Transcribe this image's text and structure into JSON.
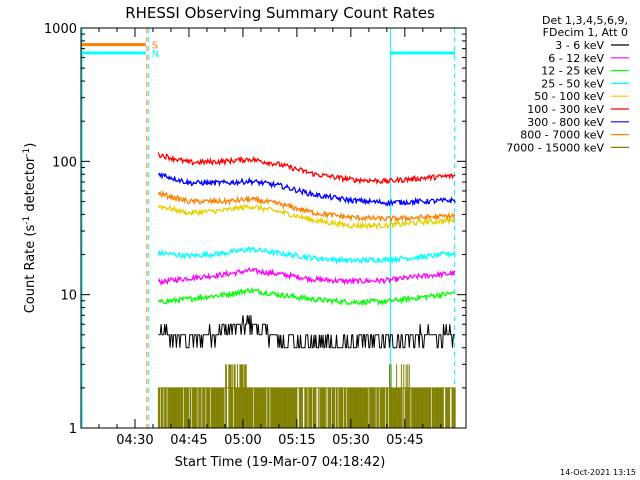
{
  "chart_data": {
    "type": "line",
    "title": "RHESSI Observing Summary Count Rates",
    "xlabel": "Start Time (19-Mar-07 04:18:42)",
    "ylabel": "Count Rate (s⁻¹ detector⁻¹)",
    "footer": "14-Oct-2021 13:15",
    "y_scale": "log",
    "ylim": [
      1,
      1000
    ],
    "xlim_minutes_after_0420": [
      0,
      107
    ],
    "y_ticks": [
      {
        "value": 1,
        "label": "1"
      },
      {
        "value": 10,
        "label": "10"
      },
      {
        "value": 100,
        "label": "100"
      },
      {
        "value": 1000,
        "label": "1000"
      }
    ],
    "x_ticks": [
      {
        "value": 15,
        "label": "04:30"
      },
      {
        "value": 30,
        "label": "04:45"
      },
      {
        "value": 45,
        "label": "05:00"
      },
      {
        "value": 60,
        "label": "05:15"
      },
      {
        "value": 75,
        "label": "05:30"
      },
      {
        "value": 90,
        "label": "05:45"
      }
    ],
    "legend_placement": "right",
    "legend_header": [
      "Det 1,3,4,5,6,9,",
      "FDecim 1, Att 0"
    ],
    "data_start_minute": 21.5,
    "data_end_minute": 104,
    "series": [
      {
        "name": "3 - 6 keV",
        "color": "#000000",
        "points": [
          [
            22,
            5.2
          ],
          [
            30,
            4.6
          ],
          [
            40,
            5.4
          ],
          [
            47,
            6.2
          ],
          [
            55,
            4.6
          ],
          [
            65,
            4.3
          ],
          [
            75,
            4.2
          ],
          [
            85,
            4.6
          ],
          [
            95,
            4.8
          ],
          [
            104,
            5.0
          ]
        ]
      },
      {
        "name": "6 - 12 keV",
        "color": "#ff00ff",
        "points": [
          [
            22,
            12.5
          ],
          [
            30,
            13.3
          ],
          [
            40,
            14.2
          ],
          [
            47,
            15.2
          ],
          [
            55,
            14.3
          ],
          [
            65,
            13.0
          ],
          [
            75,
            12.6
          ],
          [
            85,
            12.8
          ],
          [
            95,
            13.8
          ],
          [
            104,
            14.5
          ]
        ]
      },
      {
        "name": "12 - 25 keV",
        "color": "#00ff00",
        "points": [
          [
            22,
            8.8
          ],
          [
            30,
            9.3
          ],
          [
            40,
            10.0
          ],
          [
            47,
            10.8
          ],
          [
            55,
            10.0
          ],
          [
            65,
            9.2
          ],
          [
            75,
            8.8
          ],
          [
            85,
            8.9
          ],
          [
            95,
            9.6
          ],
          [
            104,
            10.3
          ]
        ]
      },
      {
        "name": "25 - 50 keV",
        "color": "#00ffff",
        "points": [
          [
            22,
            20.5
          ],
          [
            30,
            19.5
          ],
          [
            40,
            20.5
          ],
          [
            47,
            22.0
          ],
          [
            55,
            20.5
          ],
          [
            65,
            18.8
          ],
          [
            75,
            18.0
          ],
          [
            85,
            18.4
          ],
          [
            95,
            19.2
          ],
          [
            104,
            20.5
          ]
        ]
      },
      {
        "name": "50 - 100 keV",
        "color": "#e5d000",
        "points": [
          [
            22,
            46
          ],
          [
            30,
            41
          ],
          [
            40,
            43
          ],
          [
            47,
            46
          ],
          [
            55,
            42
          ],
          [
            65,
            36
          ],
          [
            75,
            33
          ],
          [
            85,
            33
          ],
          [
            95,
            35
          ],
          [
            104,
            36
          ]
        ]
      },
      {
        "name": "100 - 300 keV",
        "color": "#ff0000",
        "points": [
          [
            22,
            112
          ],
          [
            30,
            98
          ],
          [
            40,
            100
          ],
          [
            47,
            104
          ],
          [
            55,
            95
          ],
          [
            65,
            80
          ],
          [
            75,
            73
          ],
          [
            85,
            71
          ],
          [
            95,
            75
          ],
          [
            104,
            78
          ]
        ]
      },
      {
        "name": "300 - 800 keV",
        "color": "#0000ff",
        "points": [
          [
            22,
            80
          ],
          [
            30,
            69
          ],
          [
            40,
            69
          ],
          [
            47,
            71
          ],
          [
            55,
            66
          ],
          [
            65,
            56
          ],
          [
            75,
            51
          ],
          [
            85,
            49
          ],
          [
            95,
            50
          ],
          [
            104,
            51
          ]
        ]
      },
      {
        "name": "800 - 7000 keV",
        "color": "#ff8000",
        "points": [
          [
            22,
            57
          ],
          [
            30,
            50
          ],
          [
            40,
            50
          ],
          [
            47,
            52
          ],
          [
            55,
            48
          ],
          [
            65,
            41
          ],
          [
            75,
            38
          ],
          [
            85,
            37
          ],
          [
            95,
            38
          ],
          [
            104,
            39
          ]
        ]
      },
      {
        "name": "7000 - 15000 keV",
        "color": "#808000",
        "points": [
          [
            22,
            2
          ],
          [
            104,
            2
          ]
        ]
      }
    ],
    "attenuator_markers": [
      {
        "label": "S",
        "color": "#ff8000",
        "y_value": 750,
        "from_minute": 0,
        "to_minute": 18
      },
      {
        "label": "N",
        "color": "#00ffff",
        "y_value": 650,
        "from_minute": 0,
        "to_minute": 18
      },
      {
        "label": "",
        "color": "#00ffff",
        "y_value": 650,
        "from_minute": 86,
        "to_minute": 104
      }
    ],
    "vertical_markers": [
      {
        "minute": 0.3,
        "color": "#00ffff",
        "style": "solid"
      },
      {
        "minute": 18.3,
        "color": "#ff8000",
        "style": "dashed"
      },
      {
        "minute": 18.8,
        "color": "#00ffff",
        "style": "dashed"
      },
      {
        "minute": 86.0,
        "color": "#00ffff",
        "style": "solid"
      },
      {
        "minute": 103.8,
        "color": "#00ffff",
        "style": "dashed"
      }
    ],
    "grid": false
  }
}
